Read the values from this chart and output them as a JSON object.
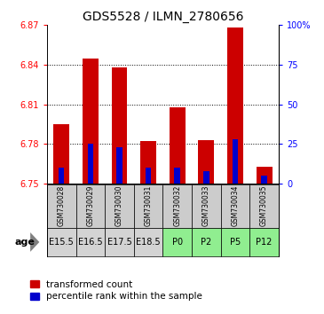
{
  "title": "GDS5528 / ILMN_2780656",
  "samples": [
    "GSM730028",
    "GSM730029",
    "GSM730030",
    "GSM730031",
    "GSM730032",
    "GSM730033",
    "GSM730034",
    "GSM730035"
  ],
  "ages": [
    "E15.5",
    "E16.5",
    "E17.5",
    "E18.5",
    "P0",
    "P2",
    "P5",
    "P12"
  ],
  "age_colors": [
    "#d3d3d3",
    "#d3d3d3",
    "#d3d3d3",
    "#d3d3d3",
    "#90ee90",
    "#90ee90",
    "#90ee90",
    "#90ee90"
  ],
  "transformed_count": [
    6.795,
    6.845,
    6.838,
    6.782,
    6.808,
    6.783,
    6.868,
    6.763
  ],
  "percentile_rank": [
    10,
    25,
    23,
    10,
    10,
    8,
    28,
    5
  ],
  "bar_bottom": 6.75,
  "ylim_left": [
    6.75,
    6.87
  ],
  "ylim_right": [
    0,
    100
  ],
  "yticks_left": [
    6.75,
    6.78,
    6.81,
    6.84,
    6.87
  ],
  "yticks_right": [
    0,
    25,
    50,
    75,
    100
  ],
  "bar_color": "#cc0000",
  "percentile_color": "#0000cc",
  "bar_width": 0.55,
  "percentile_bar_width": 0.2,
  "title_fontsize": 10,
  "tick_fontsize": 7,
  "age_label": "age"
}
